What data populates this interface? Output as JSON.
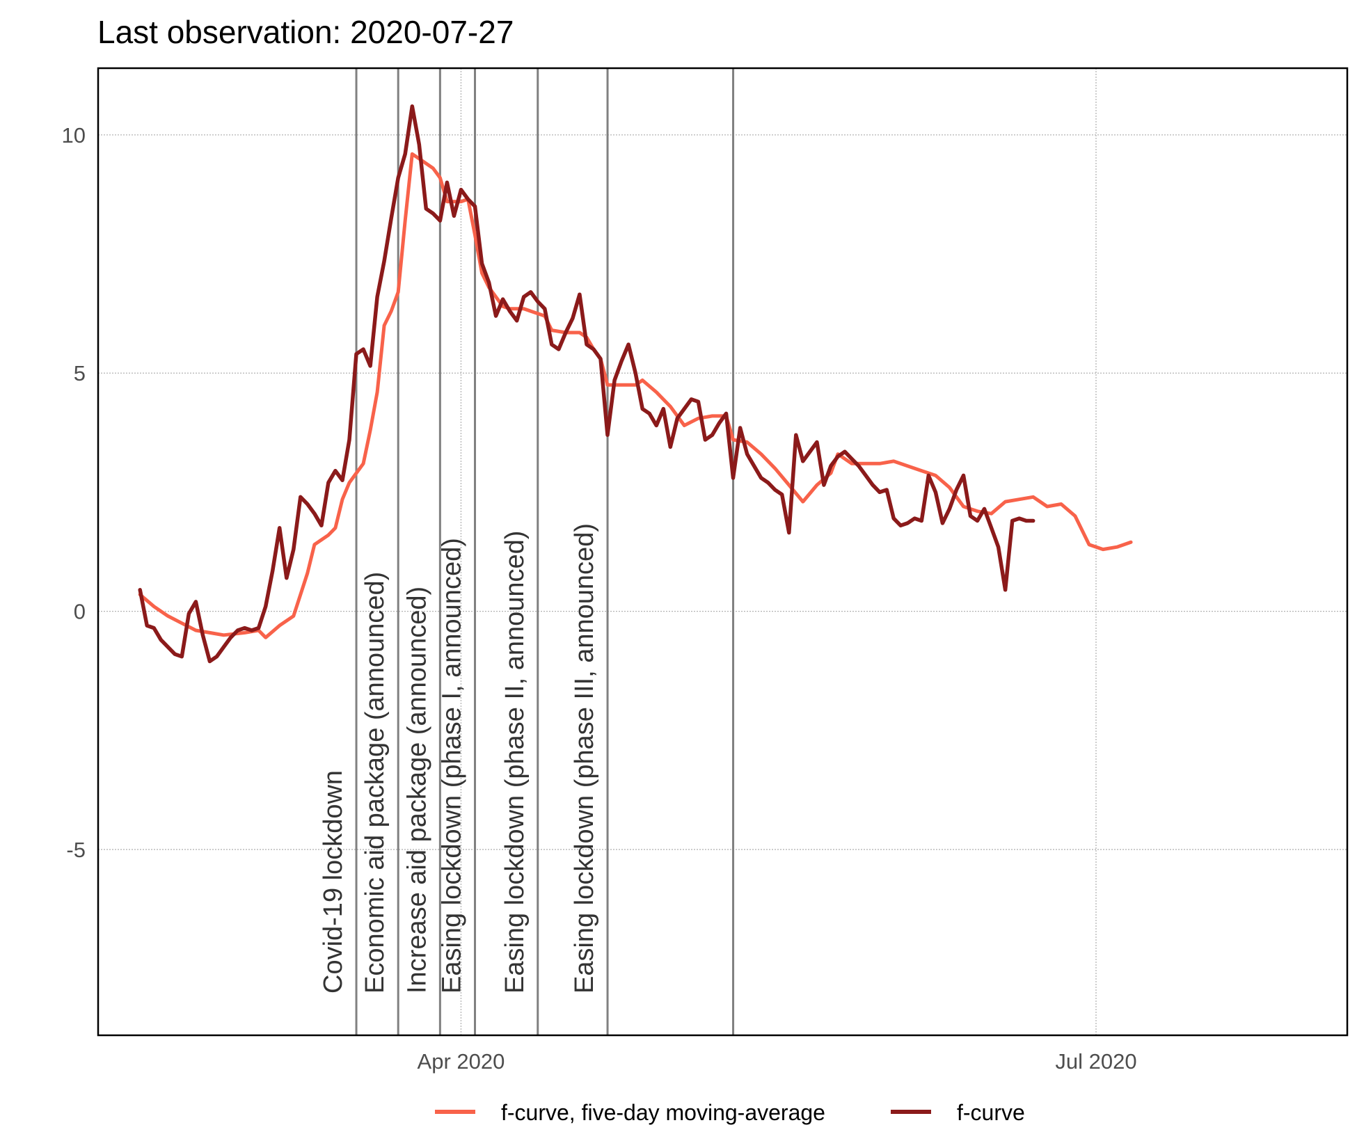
{
  "chart_data": {
    "type": "line",
    "title": "Last observation: 2020-07-27",
    "xlabel": "",
    "ylabel": "",
    "x_range": [
      "2020-02-09",
      "2020-08-06"
    ],
    "ylim": [
      -8.9,
      11.4
    ],
    "y_ticks": [
      {
        "value": -5,
        "label": "-5"
      },
      {
        "value": 0,
        "label": "0"
      },
      {
        "value": 5,
        "label": "5"
      },
      {
        "value": 10,
        "label": "10"
      }
    ],
    "x_ticks": [
      {
        "date": "2020-04-01",
        "label": "Apr 2020"
      },
      {
        "date": "2020-07-01",
        "label": "Jul 2020"
      }
    ],
    "grid": true,
    "legend_position": "bottom",
    "colors": {
      "moving_average": "#f8624a",
      "f_curve": "#8b1a1a",
      "annotation_line": "#808080",
      "grid": "#b3b3b3"
    },
    "annotations": [
      {
        "date": "2020-03-17",
        "label": "Covid-19 lockdown"
      },
      {
        "date": "2020-03-23",
        "label": "Economic aid package (announced)"
      },
      {
        "date": "2020-03-29",
        "label": "Increase aid package (announced)"
      },
      {
        "date": "2020-04-03",
        "label": "Easing lockdown (phase I, announced)"
      },
      {
        "date": "2020-04-12",
        "label": "Easing lockdown (phase II, announced)"
      },
      {
        "date": "2020-04-22",
        "label": "Easing lockdown (phase III, announced)"
      },
      {
        "date": "2020-05-10",
        "label": ""
      }
    ],
    "series": [
      {
        "name": "f-curve, five-day moving-average",
        "points": [
          [
            "2020-02-15",
            0.35
          ],
          [
            "2020-02-17",
            0.1
          ],
          [
            "2020-02-19",
            -0.1
          ],
          [
            "2020-02-21",
            -0.25
          ],
          [
            "2020-02-23",
            -0.4
          ],
          [
            "2020-02-25",
            -0.45
          ],
          [
            "2020-02-27",
            -0.5
          ],
          [
            "2020-03-01",
            -0.45
          ],
          [
            "2020-03-03",
            -0.4
          ],
          [
            "2020-03-04",
            -0.55
          ],
          [
            "2020-03-06",
            -0.3
          ],
          [
            "2020-03-08",
            -0.1
          ],
          [
            "2020-03-09",
            0.35
          ],
          [
            "2020-03-10",
            0.8
          ],
          [
            "2020-03-11",
            1.4
          ],
          [
            "2020-03-13",
            1.6
          ],
          [
            "2020-03-14",
            1.75
          ],
          [
            "2020-03-15",
            2.35
          ],
          [
            "2020-03-16",
            2.7
          ],
          [
            "2020-03-18",
            3.1
          ],
          [
            "2020-03-19",
            3.8
          ],
          [
            "2020-03-20",
            4.6
          ],
          [
            "2020-03-21",
            6.0
          ],
          [
            "2020-03-22",
            6.3
          ],
          [
            "2020-03-23",
            6.7
          ],
          [
            "2020-03-24",
            8.2
          ],
          [
            "2020-03-25",
            9.6
          ],
          [
            "2020-03-26",
            9.5
          ],
          [
            "2020-03-27",
            9.4
          ],
          [
            "2020-03-28",
            9.3
          ],
          [
            "2020-03-29",
            9.1
          ],
          [
            "2020-03-30",
            8.6
          ],
          [
            "2020-04-01",
            8.6
          ],
          [
            "2020-04-02",
            8.65
          ],
          [
            "2020-04-03",
            7.9
          ],
          [
            "2020-04-04",
            7.1
          ],
          [
            "2020-04-05",
            6.8
          ],
          [
            "2020-04-06",
            6.6
          ],
          [
            "2020-04-07",
            6.4
          ],
          [
            "2020-04-08",
            6.35
          ],
          [
            "2020-04-10",
            6.35
          ],
          [
            "2020-04-11",
            6.3
          ],
          [
            "2020-04-13",
            6.2
          ],
          [
            "2020-04-14",
            5.9
          ],
          [
            "2020-04-16",
            5.85
          ],
          [
            "2020-04-18",
            5.85
          ],
          [
            "2020-04-19",
            5.75
          ],
          [
            "2020-04-20",
            5.5
          ],
          [
            "2020-04-21",
            5.3
          ],
          [
            "2020-04-22",
            4.75
          ],
          [
            "2020-04-24",
            4.75
          ],
          [
            "2020-04-26",
            4.75
          ],
          [
            "2020-04-27",
            4.85
          ],
          [
            "2020-04-29",
            4.6
          ],
          [
            "2020-05-01",
            4.3
          ],
          [
            "2020-05-03",
            3.9
          ],
          [
            "2020-05-05",
            4.05
          ],
          [
            "2020-05-07",
            4.1
          ],
          [
            "2020-05-09",
            4.1
          ],
          [
            "2020-05-10",
            3.6
          ],
          [
            "2020-05-12",
            3.55
          ],
          [
            "2020-05-14",
            3.3
          ],
          [
            "2020-05-16",
            3.0
          ],
          [
            "2020-05-18",
            2.65
          ],
          [
            "2020-05-20",
            2.3
          ],
          [
            "2020-05-22",
            2.65
          ],
          [
            "2020-05-24",
            2.9
          ],
          [
            "2020-05-25",
            3.3
          ],
          [
            "2020-05-27",
            3.1
          ],
          [
            "2020-05-29",
            3.1
          ],
          [
            "2020-05-31",
            3.1
          ],
          [
            "2020-06-02",
            3.15
          ],
          [
            "2020-06-04",
            3.05
          ],
          [
            "2020-06-06",
            2.95
          ],
          [
            "2020-06-08",
            2.85
          ],
          [
            "2020-06-10",
            2.6
          ],
          [
            "2020-06-12",
            2.2
          ],
          [
            "2020-06-14",
            2.1
          ],
          [
            "2020-06-16",
            2.05
          ],
          [
            "2020-06-18",
            2.3
          ],
          [
            "2020-06-20",
            2.35
          ],
          [
            "2020-06-22",
            2.4
          ],
          [
            "2020-06-24",
            2.2
          ],
          [
            "2020-06-26",
            2.25
          ],
          [
            "2020-06-28",
            2.0
          ],
          [
            "2020-06-30",
            1.4
          ],
          [
            "2020-07-02",
            1.3
          ],
          [
            "2020-07-04",
            1.35
          ],
          [
            "2020-07-06",
            1.45
          ]
        ]
      },
      {
        "name": "f-curve",
        "points": [
          [
            "2020-02-15",
            0.45
          ],
          [
            "2020-02-16",
            -0.3
          ],
          [
            "2020-02-17",
            -0.35
          ],
          [
            "2020-02-18",
            -0.6
          ],
          [
            "2020-02-19",
            -0.75
          ],
          [
            "2020-02-20",
            -0.9
          ],
          [
            "2020-02-21",
            -0.95
          ],
          [
            "2020-02-22",
            -0.05
          ],
          [
            "2020-02-23",
            0.2
          ],
          [
            "2020-02-24",
            -0.5
          ],
          [
            "2020-02-25",
            -1.05
          ],
          [
            "2020-02-26",
            -0.95
          ],
          [
            "2020-02-27",
            -0.75
          ],
          [
            "2020-02-28",
            -0.55
          ],
          [
            "2020-02-29",
            -0.4
          ],
          [
            "2020-03-01",
            -0.35
          ],
          [
            "2020-03-02",
            -0.4
          ],
          [
            "2020-03-03",
            -0.35
          ],
          [
            "2020-03-04",
            0.1
          ],
          [
            "2020-03-05",
            0.85
          ],
          [
            "2020-03-06",
            1.75
          ],
          [
            "2020-03-07",
            0.7
          ],
          [
            "2020-03-08",
            1.3
          ],
          [
            "2020-03-09",
            2.4
          ],
          [
            "2020-03-10",
            2.25
          ],
          [
            "2020-03-11",
            2.05
          ],
          [
            "2020-03-12",
            1.8
          ],
          [
            "2020-03-13",
            2.7
          ],
          [
            "2020-03-14",
            2.95
          ],
          [
            "2020-03-15",
            2.75
          ],
          [
            "2020-03-16",
            3.6
          ],
          [
            "2020-03-17",
            5.4
          ],
          [
            "2020-03-18",
            5.5
          ],
          [
            "2020-03-19",
            5.15
          ],
          [
            "2020-03-20",
            6.6
          ],
          [
            "2020-03-21",
            7.35
          ],
          [
            "2020-03-22",
            8.25
          ],
          [
            "2020-03-23",
            9.1
          ],
          [
            "2020-03-24",
            9.6
          ],
          [
            "2020-03-25",
            10.6
          ],
          [
            "2020-03-26",
            9.8
          ],
          [
            "2020-03-27",
            8.45
          ],
          [
            "2020-03-28",
            8.35
          ],
          [
            "2020-03-29",
            8.2
          ],
          [
            "2020-03-30",
            9.0
          ],
          [
            "2020-03-31",
            8.3
          ],
          [
            "2020-04-01",
            8.85
          ],
          [
            "2020-04-02",
            8.65
          ],
          [
            "2020-04-03",
            8.5
          ],
          [
            "2020-04-04",
            7.3
          ],
          [
            "2020-04-05",
            6.9
          ],
          [
            "2020-04-06",
            6.2
          ],
          [
            "2020-04-07",
            6.55
          ],
          [
            "2020-04-08",
            6.3
          ],
          [
            "2020-04-09",
            6.1
          ],
          [
            "2020-04-10",
            6.6
          ],
          [
            "2020-04-11",
            6.7
          ],
          [
            "2020-04-12",
            6.5
          ],
          [
            "2020-04-13",
            6.35
          ],
          [
            "2020-04-14",
            5.6
          ],
          [
            "2020-04-15",
            5.5
          ],
          [
            "2020-04-16",
            5.85
          ],
          [
            "2020-04-17",
            6.15
          ],
          [
            "2020-04-18",
            6.65
          ],
          [
            "2020-04-19",
            5.6
          ],
          [
            "2020-04-20",
            5.5
          ],
          [
            "2020-04-21",
            5.3
          ],
          [
            "2020-04-22",
            3.7
          ],
          [
            "2020-04-23",
            4.85
          ],
          [
            "2020-04-24",
            5.25
          ],
          [
            "2020-04-25",
            5.6
          ],
          [
            "2020-04-26",
            5.0
          ],
          [
            "2020-04-27",
            4.25
          ],
          [
            "2020-04-28",
            4.15
          ],
          [
            "2020-04-29",
            3.9
          ],
          [
            "2020-04-30",
            4.25
          ],
          [
            "2020-05-01",
            3.45
          ],
          [
            "2020-05-02",
            4.05
          ],
          [
            "2020-05-03",
            4.25
          ],
          [
            "2020-05-04",
            4.45
          ],
          [
            "2020-05-05",
            4.4
          ],
          [
            "2020-05-06",
            3.6
          ],
          [
            "2020-05-07",
            3.7
          ],
          [
            "2020-05-08",
            3.95
          ],
          [
            "2020-05-09",
            4.15
          ],
          [
            "2020-05-10",
            2.8
          ],
          [
            "2020-05-11",
            3.85
          ],
          [
            "2020-05-12",
            3.3
          ],
          [
            "2020-05-13",
            3.05
          ],
          [
            "2020-05-14",
            2.8
          ],
          [
            "2020-05-15",
            2.7
          ],
          [
            "2020-05-16",
            2.55
          ],
          [
            "2020-05-17",
            2.45
          ],
          [
            "2020-05-18",
            1.65
          ],
          [
            "2020-05-19",
            3.7
          ],
          [
            "2020-05-20",
            3.15
          ],
          [
            "2020-05-21",
            3.35
          ],
          [
            "2020-05-22",
            3.55
          ],
          [
            "2020-05-23",
            2.65
          ],
          [
            "2020-05-24",
            3.05
          ],
          [
            "2020-05-25",
            3.25
          ],
          [
            "2020-05-26",
            3.35
          ],
          [
            "2020-05-27",
            3.2
          ],
          [
            "2020-05-28",
            3.05
          ],
          [
            "2020-05-29",
            2.85
          ],
          [
            "2020-05-30",
            2.65
          ],
          [
            "2020-05-31",
            2.5
          ],
          [
            "2020-06-01",
            2.55
          ],
          [
            "2020-06-02",
            1.95
          ],
          [
            "2020-06-03",
            1.8
          ],
          [
            "2020-06-04",
            1.85
          ],
          [
            "2020-06-05",
            1.95
          ],
          [
            "2020-06-06",
            1.9
          ],
          [
            "2020-06-07",
            2.85
          ],
          [
            "2020-06-08",
            2.5
          ],
          [
            "2020-06-09",
            1.85
          ],
          [
            "2020-06-10",
            2.15
          ],
          [
            "2020-06-11",
            2.55
          ],
          [
            "2020-06-12",
            2.85
          ],
          [
            "2020-06-13",
            2.0
          ],
          [
            "2020-06-14",
            1.9
          ],
          [
            "2020-06-15",
            2.15
          ],
          [
            "2020-06-16",
            1.75
          ],
          [
            "2020-06-17",
            1.35
          ],
          [
            "2020-06-18",
            0.45
          ],
          [
            "2020-06-19",
            1.9
          ],
          [
            "2020-06-20",
            1.95
          ],
          [
            "2020-06-21",
            1.9
          ],
          [
            "2020-06-22",
            1.9
          ]
        ]
      }
    ]
  }
}
